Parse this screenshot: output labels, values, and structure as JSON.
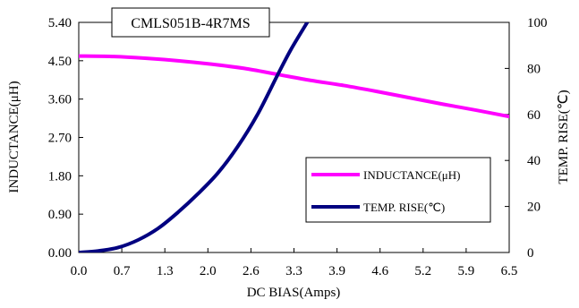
{
  "chart_data": {
    "type": "line",
    "title": "CMLS051B-4R7MS",
    "xlabel": "DC BIAS(Amps)",
    "ylabel": "INDUCTANCE(μH)",
    "y2label": "TEMP. RISE(℃)",
    "xlim": [
      0.0,
      6.5
    ],
    "ylim": [
      0.0,
      5.4
    ],
    "y2lim": [
      0,
      100
    ],
    "x_ticks": [
      "0.0",
      "0.7",
      "1.3",
      "2.0",
      "2.6",
      "3.3",
      "3.9",
      "4.6",
      "5.2",
      "5.9",
      "6.5"
    ],
    "y_ticks": [
      "0.00",
      "0.90",
      "1.80",
      "2.70",
      "3.60",
      "4.50",
      "5.40"
    ],
    "y2_ticks": [
      "0",
      "20",
      "40",
      "60",
      "80",
      "100"
    ],
    "grid": false,
    "legend_position": "bottom-right",
    "series": [
      {
        "name": "INDUCTANCE(μH)",
        "axis": "left",
        "color": "#FF00FF",
        "x": [
          0.0,
          0.5,
          1.0,
          1.5,
          2.0,
          2.5,
          3.0,
          3.5,
          4.0,
          4.5,
          5.0,
          5.5,
          6.0,
          6.5
        ],
        "y": [
          4.61,
          4.6,
          4.56,
          4.5,
          4.42,
          4.32,
          4.18,
          4.04,
          3.92,
          3.78,
          3.63,
          3.48,
          3.34,
          3.19
        ]
      },
      {
        "name": "TEMP. RISE(℃)",
        "axis": "right",
        "color": "#000080",
        "x": [
          0.0,
          0.3,
          0.6,
          0.9,
          1.2,
          1.5,
          1.8,
          2.1,
          2.4,
          2.7,
          3.0,
          3.2,
          3.45
        ],
        "y": [
          0,
          0.7,
          2.2,
          5.5,
          10.5,
          17.5,
          25.5,
          34.5,
          46,
          60,
          77,
          88,
          100
        ]
      }
    ]
  }
}
